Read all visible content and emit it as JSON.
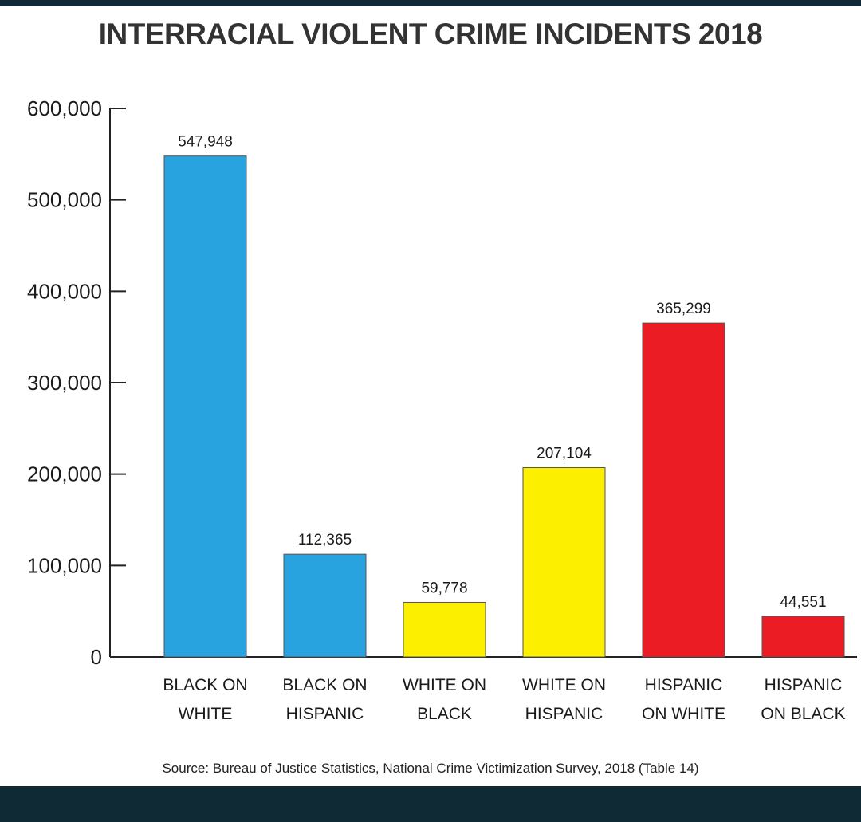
{
  "chart_data": {
    "type": "bar",
    "title": "INTERRACIAL VIOLENT CRIME INCIDENTS 2018",
    "categories": [
      [
        "BLACK ON",
        "WHITE"
      ],
      [
        "BLACK ON",
        "HISPANIC"
      ],
      [
        "WHITE ON",
        "BLACK"
      ],
      [
        "WHITE ON",
        "HISPANIC"
      ],
      [
        "HISPANIC",
        "ON WHITE"
      ],
      [
        "HISPANIC",
        "ON BLACK"
      ]
    ],
    "values": [
      547948,
      112365,
      59778,
      207104,
      365299,
      44551
    ],
    "value_labels": [
      "547,948",
      "112,365",
      "59,778",
      "207,104",
      "365,299",
      "44,551"
    ],
    "colors": [
      "#29a3e0",
      "#29a3e0",
      "#fcf000",
      "#fcf000",
      "#ec1c24",
      "#ec1c24"
    ],
    "ylim": [
      0,
      600000
    ],
    "yticks": [
      0,
      100000,
      200000,
      300000,
      400000,
      500000,
      600000
    ],
    "ytick_labels": [
      "0",
      "100,000",
      "200,000",
      "300,000",
      "400,000",
      "500,000",
      "600,000"
    ],
    "xlabel": "",
    "ylabel": "",
    "grid": false,
    "legend": "none"
  },
  "source": "Source: Bureau of Justice Statistics, National Crime Victimization Survey, 2018 (Table 14)"
}
